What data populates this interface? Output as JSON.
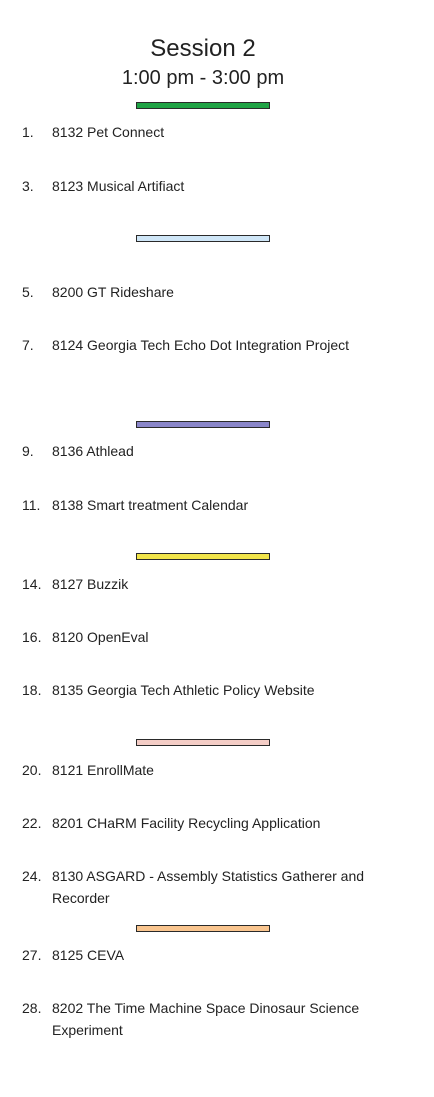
{
  "session": {
    "title": "Session 2",
    "time": "1:00 pm - 3:00 pm"
  },
  "dividers": [
    {
      "color": "#1fa345"
    },
    {
      "color": "#cfe6f7"
    },
    {
      "color": "#8a86c9"
    },
    {
      "color": "#f2e54a"
    },
    {
      "color": "#f4cdc6"
    },
    {
      "color": "#f9c58f"
    }
  ],
  "items": [
    {
      "num": "1.",
      "text": "8132 Pet Connect"
    },
    {
      "num": "3.",
      "text": "8123 Musical Artifiact"
    },
    {
      "num": "5.",
      "text": "8200 GT Rideshare"
    },
    {
      "num": "7.",
      "text": "8124 Georgia Tech Echo Dot Integration Project"
    },
    {
      "num": "9.",
      "text": "8136 Athlead"
    },
    {
      "num": "11.",
      "text": "8138 Smart treatment Calendar"
    },
    {
      "num": "14.",
      "text": "8127 Buzzik"
    },
    {
      "num": "16.",
      "text": "8120 OpenEval"
    },
    {
      "num": "18.",
      "text": "8135 Georgia Tech Athletic Policy Website"
    },
    {
      "num": "20.",
      "text": "8121 EnrollMate"
    },
    {
      "num": "22.",
      "text": "8201 CHaRM Facility Recycling Application"
    },
    {
      "num": "24.",
      "text": "8130 ASGARD - Assembly Statistics Gatherer and Recorder"
    },
    {
      "num": "27.",
      "text": "8125 CEVA"
    },
    {
      "num": "28.",
      "text": "8202 The Time Machine Space Dinosaur Science Experiment"
    }
  ]
}
